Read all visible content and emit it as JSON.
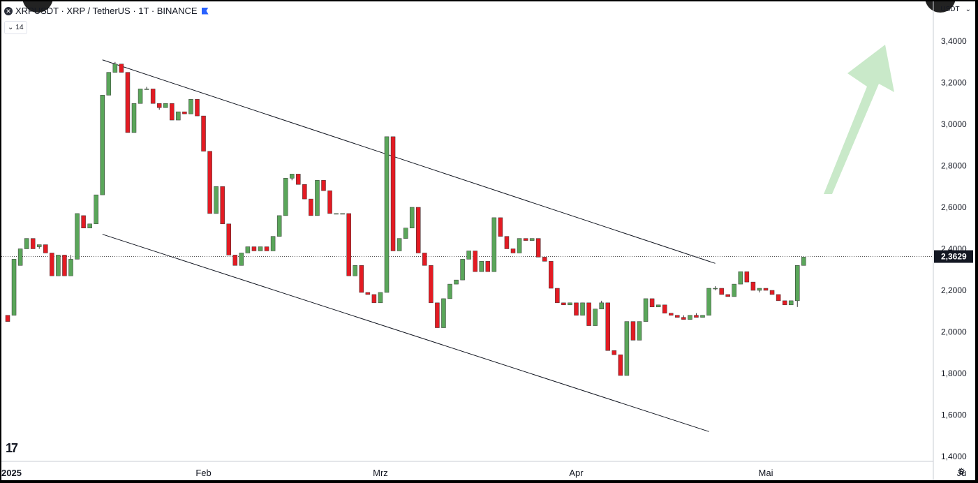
{
  "header": {
    "title": "XRPUSDT · XRP / TetherUS · 1T · BINANCE",
    "indicator_label": "14"
  },
  "currency": "USDT",
  "colors": {
    "up": "#5aa65a",
    "down": "#e31b23",
    "arrow": "#c6e8c6",
    "axis_text": "#131722",
    "price_label_bg": "#131722"
  },
  "chart_data": {
    "type": "candlestick",
    "symbol": "XRPUSDT",
    "y_ticks": [
      "3,4000",
      "3,2000",
      "3,0000",
      "2,8000",
      "2,6000",
      "2,4000",
      "2,2000",
      "2,0000",
      "1,8000",
      "1,6000",
      "1,4000"
    ],
    "y_tick_values": [
      3.4,
      3.2,
      3.0,
      2.8,
      2.6,
      2.4,
      2.2,
      2.0,
      1.8,
      1.6,
      1.4
    ],
    "ylim": [
      1.4,
      3.4
    ],
    "x_ticks": [
      {
        "label": "2025",
        "index": 0
      },
      {
        "label": "Feb",
        "index": 31
      },
      {
        "label": "Mrz",
        "index": 59
      },
      {
        "label": "Apr",
        "index": 90
      },
      {
        "label": "Mai",
        "index": 120
      },
      {
        "label": "Ju",
        "index": 151
      }
    ],
    "current_price": "2,3629",
    "current_price_value": 2.3629,
    "candles": [
      [
        2.08,
        2.08,
        2.05,
        2.05
      ],
      [
        2.08,
        2.35,
        2.08,
        2.35
      ],
      [
        2.32,
        2.4,
        2.32,
        2.4
      ],
      [
        2.4,
        2.45,
        2.4,
        2.45
      ],
      [
        2.45,
        2.45,
        2.4,
        2.4
      ],
      [
        2.41,
        2.42,
        2.4,
        2.42
      ],
      [
        2.42,
        2.42,
        2.38,
        2.38
      ],
      [
        2.38,
        2.38,
        2.27,
        2.27
      ],
      [
        2.27,
        2.37,
        2.27,
        2.37
      ],
      [
        2.37,
        2.37,
        2.27,
        2.27
      ],
      [
        2.27,
        2.37,
        2.27,
        2.35
      ],
      [
        2.35,
        2.57,
        2.35,
        2.57
      ],
      [
        2.56,
        2.56,
        2.5,
        2.5
      ],
      [
        2.5,
        2.52,
        2.5,
        2.52
      ],
      [
        2.52,
        2.66,
        2.52,
        2.66
      ],
      [
        2.66,
        3.14,
        2.66,
        3.14
      ],
      [
        3.14,
        3.25,
        3.14,
        3.25
      ],
      [
        3.25,
        3.3,
        3.25,
        3.29
      ],
      [
        3.29,
        3.29,
        3.25,
        3.25
      ],
      [
        3.25,
        3.25,
        2.96,
        2.96
      ],
      [
        2.96,
        3.1,
        2.96,
        3.1
      ],
      [
        3.1,
        3.17,
        3.1,
        3.17
      ],
      [
        3.17,
        3.18,
        3.17,
        3.17
      ],
      [
        3.17,
        3.17,
        3.1,
        3.1
      ],
      [
        3.1,
        3.1,
        3.07,
        3.08
      ],
      [
        3.08,
        3.1,
        3.08,
        3.1
      ],
      [
        3.1,
        3.1,
        3.02,
        3.02
      ],
      [
        3.02,
        3.06,
        3.02,
        3.06
      ],
      [
        3.06,
        3.06,
        3.05,
        3.05
      ],
      [
        3.05,
        3.12,
        3.05,
        3.12
      ],
      [
        3.12,
        3.12,
        3.04,
        3.04
      ],
      [
        3.04,
        3.04,
        2.87,
        2.87
      ],
      [
        2.87,
        2.87,
        2.57,
        2.57
      ],
      [
        2.57,
        2.7,
        2.57,
        2.7
      ],
      [
        2.7,
        2.7,
        2.52,
        2.52
      ],
      [
        2.52,
        2.52,
        2.37,
        2.37
      ],
      [
        2.37,
        2.37,
        2.32,
        2.32
      ],
      [
        2.32,
        2.38,
        2.32,
        2.38
      ],
      [
        2.38,
        2.41,
        2.38,
        2.41
      ],
      [
        2.41,
        2.41,
        2.39,
        2.39
      ],
      [
        2.39,
        2.41,
        2.39,
        2.41
      ],
      [
        2.41,
        2.41,
        2.39,
        2.39
      ],
      [
        2.39,
        2.46,
        2.39,
        2.46
      ],
      [
        2.46,
        2.56,
        2.46,
        2.56
      ],
      [
        2.56,
        2.74,
        2.56,
        2.74
      ],
      [
        2.74,
        2.76,
        2.73,
        2.76
      ],
      [
        2.76,
        2.76,
        2.71,
        2.71
      ],
      [
        2.71,
        2.71,
        2.64,
        2.64
      ],
      [
        2.64,
        2.64,
        2.56,
        2.56
      ],
      [
        2.56,
        2.73,
        2.56,
        2.73
      ],
      [
        2.73,
        2.73,
        2.68,
        2.68
      ],
      [
        2.68,
        2.68,
        2.57,
        2.57
      ],
      [
        2.57,
        2.57,
        2.57,
        2.57
      ],
      [
        2.57,
        2.57,
        2.57,
        2.57
      ],
      [
        2.57,
        2.57,
        2.27,
        2.27
      ],
      [
        2.27,
        2.32,
        2.27,
        2.32
      ],
      [
        2.32,
        2.32,
        2.19,
        2.19
      ],
      [
        2.19,
        2.19,
        2.18,
        2.18
      ],
      [
        2.18,
        2.18,
        2.14,
        2.14
      ],
      [
        2.14,
        2.19,
        2.14,
        2.19
      ],
      [
        2.19,
        2.94,
        2.19,
        2.94
      ],
      [
        2.94,
        2.94,
        2.39,
        2.39
      ],
      [
        2.39,
        2.45,
        2.39,
        2.45
      ],
      [
        2.45,
        2.5,
        2.45,
        2.5
      ],
      [
        2.5,
        2.6,
        2.5,
        2.6
      ],
      [
        2.6,
        2.6,
        2.38,
        2.38
      ],
      [
        2.38,
        2.38,
        2.32,
        2.32
      ],
      [
        2.32,
        2.32,
        2.14,
        2.14
      ],
      [
        2.14,
        2.14,
        2.02,
        2.02
      ],
      [
        2.02,
        2.16,
        2.02,
        2.16
      ],
      [
        2.16,
        2.23,
        2.16,
        2.23
      ],
      [
        2.23,
        2.25,
        2.23,
        2.25
      ],
      [
        2.25,
        2.35,
        2.25,
        2.35
      ],
      [
        2.35,
        2.39,
        2.35,
        2.39
      ],
      [
        2.39,
        2.39,
        2.29,
        2.29
      ],
      [
        2.29,
        2.34,
        2.29,
        2.34
      ],
      [
        2.34,
        2.34,
        2.29,
        2.29
      ],
      [
        2.29,
        2.55,
        2.29,
        2.55
      ],
      [
        2.55,
        2.55,
        2.46,
        2.46
      ],
      [
        2.46,
        2.46,
        2.4,
        2.4
      ],
      [
        2.4,
        2.4,
        2.38,
        2.38
      ],
      [
        2.38,
        2.45,
        2.38,
        2.45
      ],
      [
        2.45,
        2.45,
        2.44,
        2.44
      ],
      [
        2.44,
        2.45,
        2.44,
        2.45
      ],
      [
        2.45,
        2.45,
        2.36,
        2.36
      ],
      [
        2.36,
        2.36,
        2.34,
        2.34
      ],
      [
        2.34,
        2.34,
        2.21,
        2.21
      ],
      [
        2.21,
        2.21,
        2.14,
        2.14
      ],
      [
        2.14,
        2.14,
        2.13,
        2.13
      ],
      [
        2.13,
        2.14,
        2.13,
        2.14
      ],
      [
        2.14,
        2.14,
        2.08,
        2.08
      ],
      [
        2.08,
        2.14,
        2.08,
        2.14
      ],
      [
        2.14,
        2.14,
        2.03,
        2.03
      ],
      [
        2.03,
        2.11,
        2.03,
        2.11
      ],
      [
        2.11,
        2.15,
        2.11,
        2.14
      ],
      [
        2.14,
        2.14,
        1.91,
        1.91
      ],
      [
        1.91,
        1.91,
        1.89,
        1.89
      ],
      [
        1.89,
        1.89,
        1.79,
        1.79
      ],
      [
        1.79,
        2.05,
        1.79,
        2.05
      ],
      [
        2.05,
        2.05,
        1.96,
        1.96
      ],
      [
        1.96,
        2.05,
        1.96,
        2.05
      ],
      [
        2.05,
        2.16,
        2.05,
        2.16
      ],
      [
        2.16,
        2.16,
        2.12,
        2.12
      ],
      [
        2.12,
        2.13,
        2.12,
        2.13
      ],
      [
        2.13,
        2.13,
        2.09,
        2.09
      ],
      [
        2.09,
        2.09,
        2.08,
        2.08
      ],
      [
        2.08,
        2.08,
        2.07,
        2.07
      ],
      [
        2.07,
        2.08,
        2.06,
        2.06
      ],
      [
        2.06,
        2.08,
        2.06,
        2.08
      ],
      [
        2.08,
        2.09,
        2.07,
        2.07
      ],
      [
        2.07,
        2.08,
        2.07,
        2.08
      ],
      [
        2.08,
        2.21,
        2.08,
        2.21
      ],
      [
        2.21,
        2.22,
        2.2,
        2.21
      ],
      [
        2.21,
        2.21,
        2.18,
        2.18
      ],
      [
        2.18,
        2.18,
        2.17,
        2.17
      ],
      [
        2.17,
        2.23,
        2.17,
        2.23
      ],
      [
        2.23,
        2.29,
        2.23,
        2.29
      ],
      [
        2.29,
        2.29,
        2.24,
        2.24
      ],
      [
        2.24,
        2.24,
        2.2,
        2.2
      ],
      [
        2.2,
        2.21,
        2.19,
        2.21
      ],
      [
        2.21,
        2.21,
        2.2,
        2.2
      ],
      [
        2.2,
        2.2,
        2.18,
        2.18
      ],
      [
        2.18,
        2.18,
        2.15,
        2.15
      ],
      [
        2.15,
        2.15,
        2.13,
        2.13
      ],
      [
        2.13,
        2.15,
        2.13,
        2.15
      ],
      [
        2.15,
        2.32,
        2.12,
        2.32
      ],
      [
        2.32,
        2.36,
        2.32,
        2.36
      ]
    ],
    "channel_upper": [
      [
        15,
        3.31
      ],
      [
        112,
        2.33
      ]
    ],
    "channel_lower": [
      [
        15,
        2.47
      ],
      [
        111,
        1.52
      ]
    ],
    "arrow_direction": "up"
  }
}
